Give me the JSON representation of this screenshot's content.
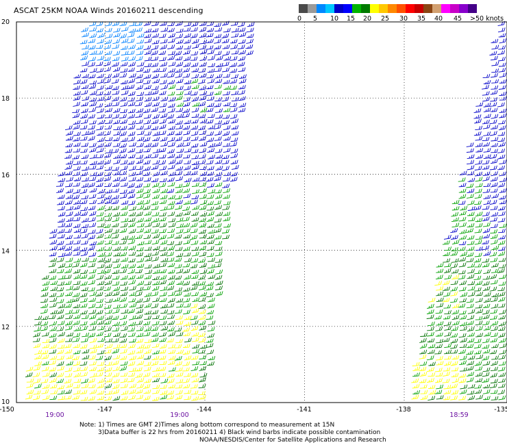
{
  "title": "ASCAT 25KM NOAA Winds 20160211 descending",
  "colorbar": {
    "colors": [
      "#4a4a4a",
      "#9a9a9a",
      "#0088ff",
      "#00c8ff",
      "#0000c8",
      "#0000ff",
      "#00b400",
      "#007a00",
      "#ffff00",
      "#ffc800",
      "#ff8800",
      "#ff5000",
      "#ff0000",
      "#c80000",
      "#8b4513",
      "#d2a070",
      "#ff00ff",
      "#c800c8",
      "#8800cc",
      "#440088"
    ],
    "labels": [
      "0",
      "5",
      "10",
      "15",
      "20",
      "25",
      "30",
      "35",
      "40",
      "45",
      ">50 knots"
    ]
  },
  "lat_labels": [
    "20",
    "18",
    "16",
    "14",
    "12",
    "10"
  ],
  "lon_labels": [
    "-150",
    "-147",
    "-144",
    "-141",
    "-138",
    "-135"
  ],
  "times": [
    "19:00",
    "19:00",
    "18:59"
  ],
  "notes": [
    "Note: 1) Times are GMT 2)Times along bottom correspond to measurement at 15N",
    "3)Data buffer is 22 hrs from 20160211 4) Black wind barbs indicate possible contamination",
    "NOAA/NESDIS/Center for Satellite Applications and Research"
  ],
  "swaths": [
    {
      "name": "left-swath",
      "time": "19:00"
    },
    {
      "name": "right-swath",
      "time": "18:59"
    }
  ],
  "wind_speed_colors": {
    "10-15": "#0000c8",
    "15-20": "#00a000",
    "20-25": "#007000",
    "25-30": "#ffff00",
    "5-10": "#0080ff"
  }
}
